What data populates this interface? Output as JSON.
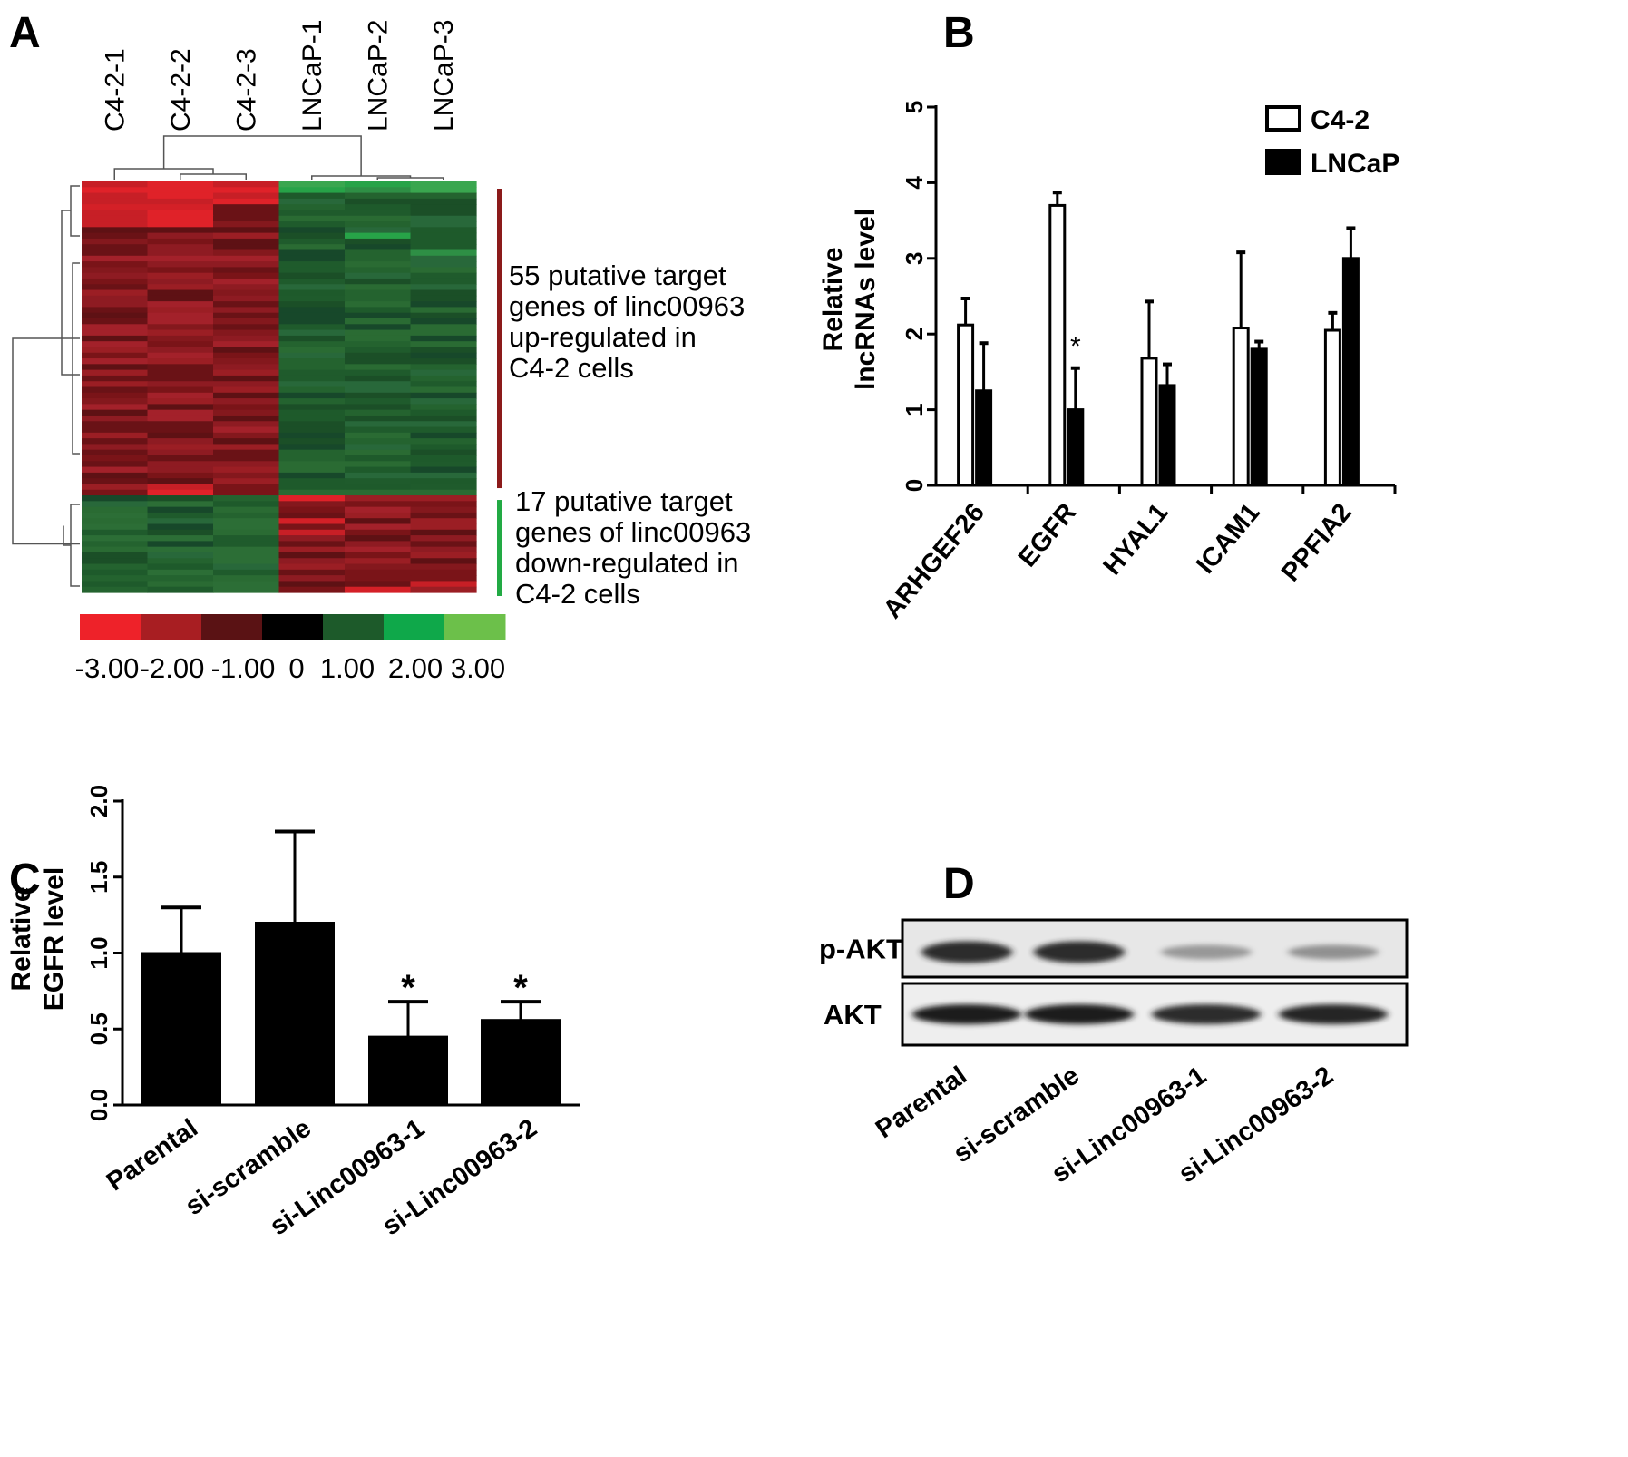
{
  "panels": {
    "a": "A",
    "b": "B",
    "c": "C",
    "d": "D"
  },
  "chart_data": [
    {
      "panel": "A",
      "type": "heatmap",
      "columns": [
        "C4-2-1",
        "C4-2-2",
        "C4-2-3",
        "LNCaP-1",
        "LNCaP-2",
        "LNCaP-3"
      ],
      "annotations": [
        {
          "lines": [
            "55 putative target",
            "genes of linc00963",
            "up-regulated in",
            "C4-2 cells"
          ],
          "bar_color": "#8b1a1a"
        },
        {
          "lines": [
            "17 putative target",
            "genes of linc00963",
            "down-regulated in",
            "C4-2 cells"
          ],
          "bar_color": "#22aa44"
        }
      ],
      "color_scale": {
        "colors": [
          "#ee2229",
          "#a81e22",
          "#5a1214",
          "#000000",
          "#1d5a2a",
          "#0fa84a",
          "#6cc04a"
        ],
        "tick_labels": [
          "-3.00",
          "-2.00",
          "-1.00",
          "0",
          "1.00",
          "2.00",
          "3.00"
        ]
      },
      "row_groups": [
        {
          "rows": 55,
          "pattern": "up in C4-2"
        },
        {
          "rows": 17,
          "pattern": "down in C4-2"
        }
      ]
    },
    {
      "panel": "B",
      "type": "bar",
      "categories": [
        "ARHGEF26",
        "EGFR",
        "HYAL1",
        "ICAM1",
        "PPFIA2"
      ],
      "series": [
        {
          "name": "C4-2",
          "fill": "#ffffff",
          "values": [
            2.12,
            3.7,
            1.68,
            2.08,
            2.05
          ],
          "errors": [
            0.35,
            0.17,
            0.75,
            1.0,
            0.23
          ]
        },
        {
          "name": "LNCaP",
          "fill": "#000000",
          "values": [
            1.25,
            1.0,
            1.32,
            1.8,
            3.0
          ],
          "errors": [
            0.63,
            0.55,
            0.28,
            0.1,
            0.4
          ]
        }
      ],
      "ylabel": [
        "Relative",
        "lncRNAs level"
      ],
      "ylim": [
        0,
        5
      ],
      "yticks": [
        "0",
        "1",
        "2",
        "3",
        "4",
        "5"
      ],
      "significance": [
        {
          "category": "EGFR",
          "series": "LNCaP",
          "mark": "*"
        }
      ],
      "legend_position": "top-right"
    },
    {
      "panel": "C",
      "type": "bar",
      "categories": [
        "Parental",
        "si-scramble",
        "si-Linc00963-1",
        "si-Linc00963-2"
      ],
      "values": [
        1.0,
        1.2,
        0.45,
        0.56
      ],
      "errors": [
        0.3,
        0.6,
        0.23,
        0.12
      ],
      "ylabel": [
        "Relative",
        "EGFR level"
      ],
      "ylim": [
        0,
        2.0
      ],
      "yticks": [
        "0.0",
        "0.5",
        "1.0",
        "1.5",
        "2.0"
      ],
      "significance": [
        {
          "category": "si-Linc00963-1",
          "mark": "*"
        },
        {
          "category": "si-Linc00963-2",
          "mark": "*"
        }
      ]
    }
  ],
  "western_blot": {
    "panel": "D",
    "lanes": [
      "Parental",
      "si-scramble",
      "si-Linc00963-1",
      "si-Linc00963-2"
    ],
    "rows": [
      {
        "label": "p-AKT",
        "intensities": [
          0.95,
          0.95,
          0.4,
          0.45
        ]
      },
      {
        "label": "AKT",
        "intensities": [
          1.0,
          1.0,
          0.95,
          0.97
        ]
      }
    ]
  }
}
